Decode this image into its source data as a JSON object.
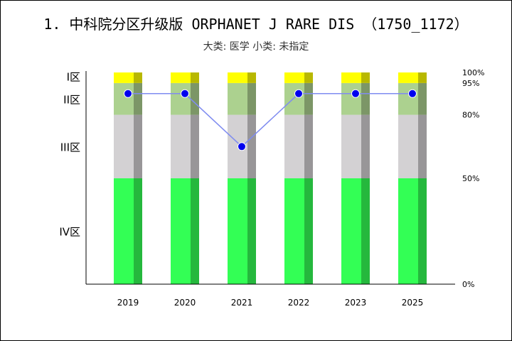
{
  "title": "1. 中科院分区升级版 ORPHANET J RARE DIS （1750_1172）",
  "subtitle": "大类: 医学 小类: 未指定",
  "colors": {
    "zone_I": "#ffff00",
    "zone_II": "#acd18f",
    "zone_III": "#d3d1d3",
    "zone_IV": "#33ff55",
    "line": "#7f8cf0",
    "marker": "#0000ee"
  },
  "chart_data": {
    "type": "bar",
    "stacked": true,
    "categories": [
      "2019",
      "2020",
      "2021",
      "2022",
      "2023",
      "2025"
    ],
    "zones": [
      {
        "name": "IV区",
        "from": 0,
        "to": 50
      },
      {
        "name": "III区",
        "from": 50,
        "to": 80
      },
      {
        "name": "II区",
        "from": 80,
        "to": 95
      },
      {
        "name": "I区",
        "from": 95,
        "to": 100
      }
    ],
    "right_ticks": [
      "0%",
      "50%",
      "80%",
      "95%",
      "100%"
    ],
    "right_tick_values": [
      0,
      50,
      80,
      95,
      100
    ],
    "ylim": [
      0,
      100
    ],
    "series": [
      {
        "values": [
          90,
          90,
          65,
          90,
          90,
          90
        ]
      }
    ]
  }
}
